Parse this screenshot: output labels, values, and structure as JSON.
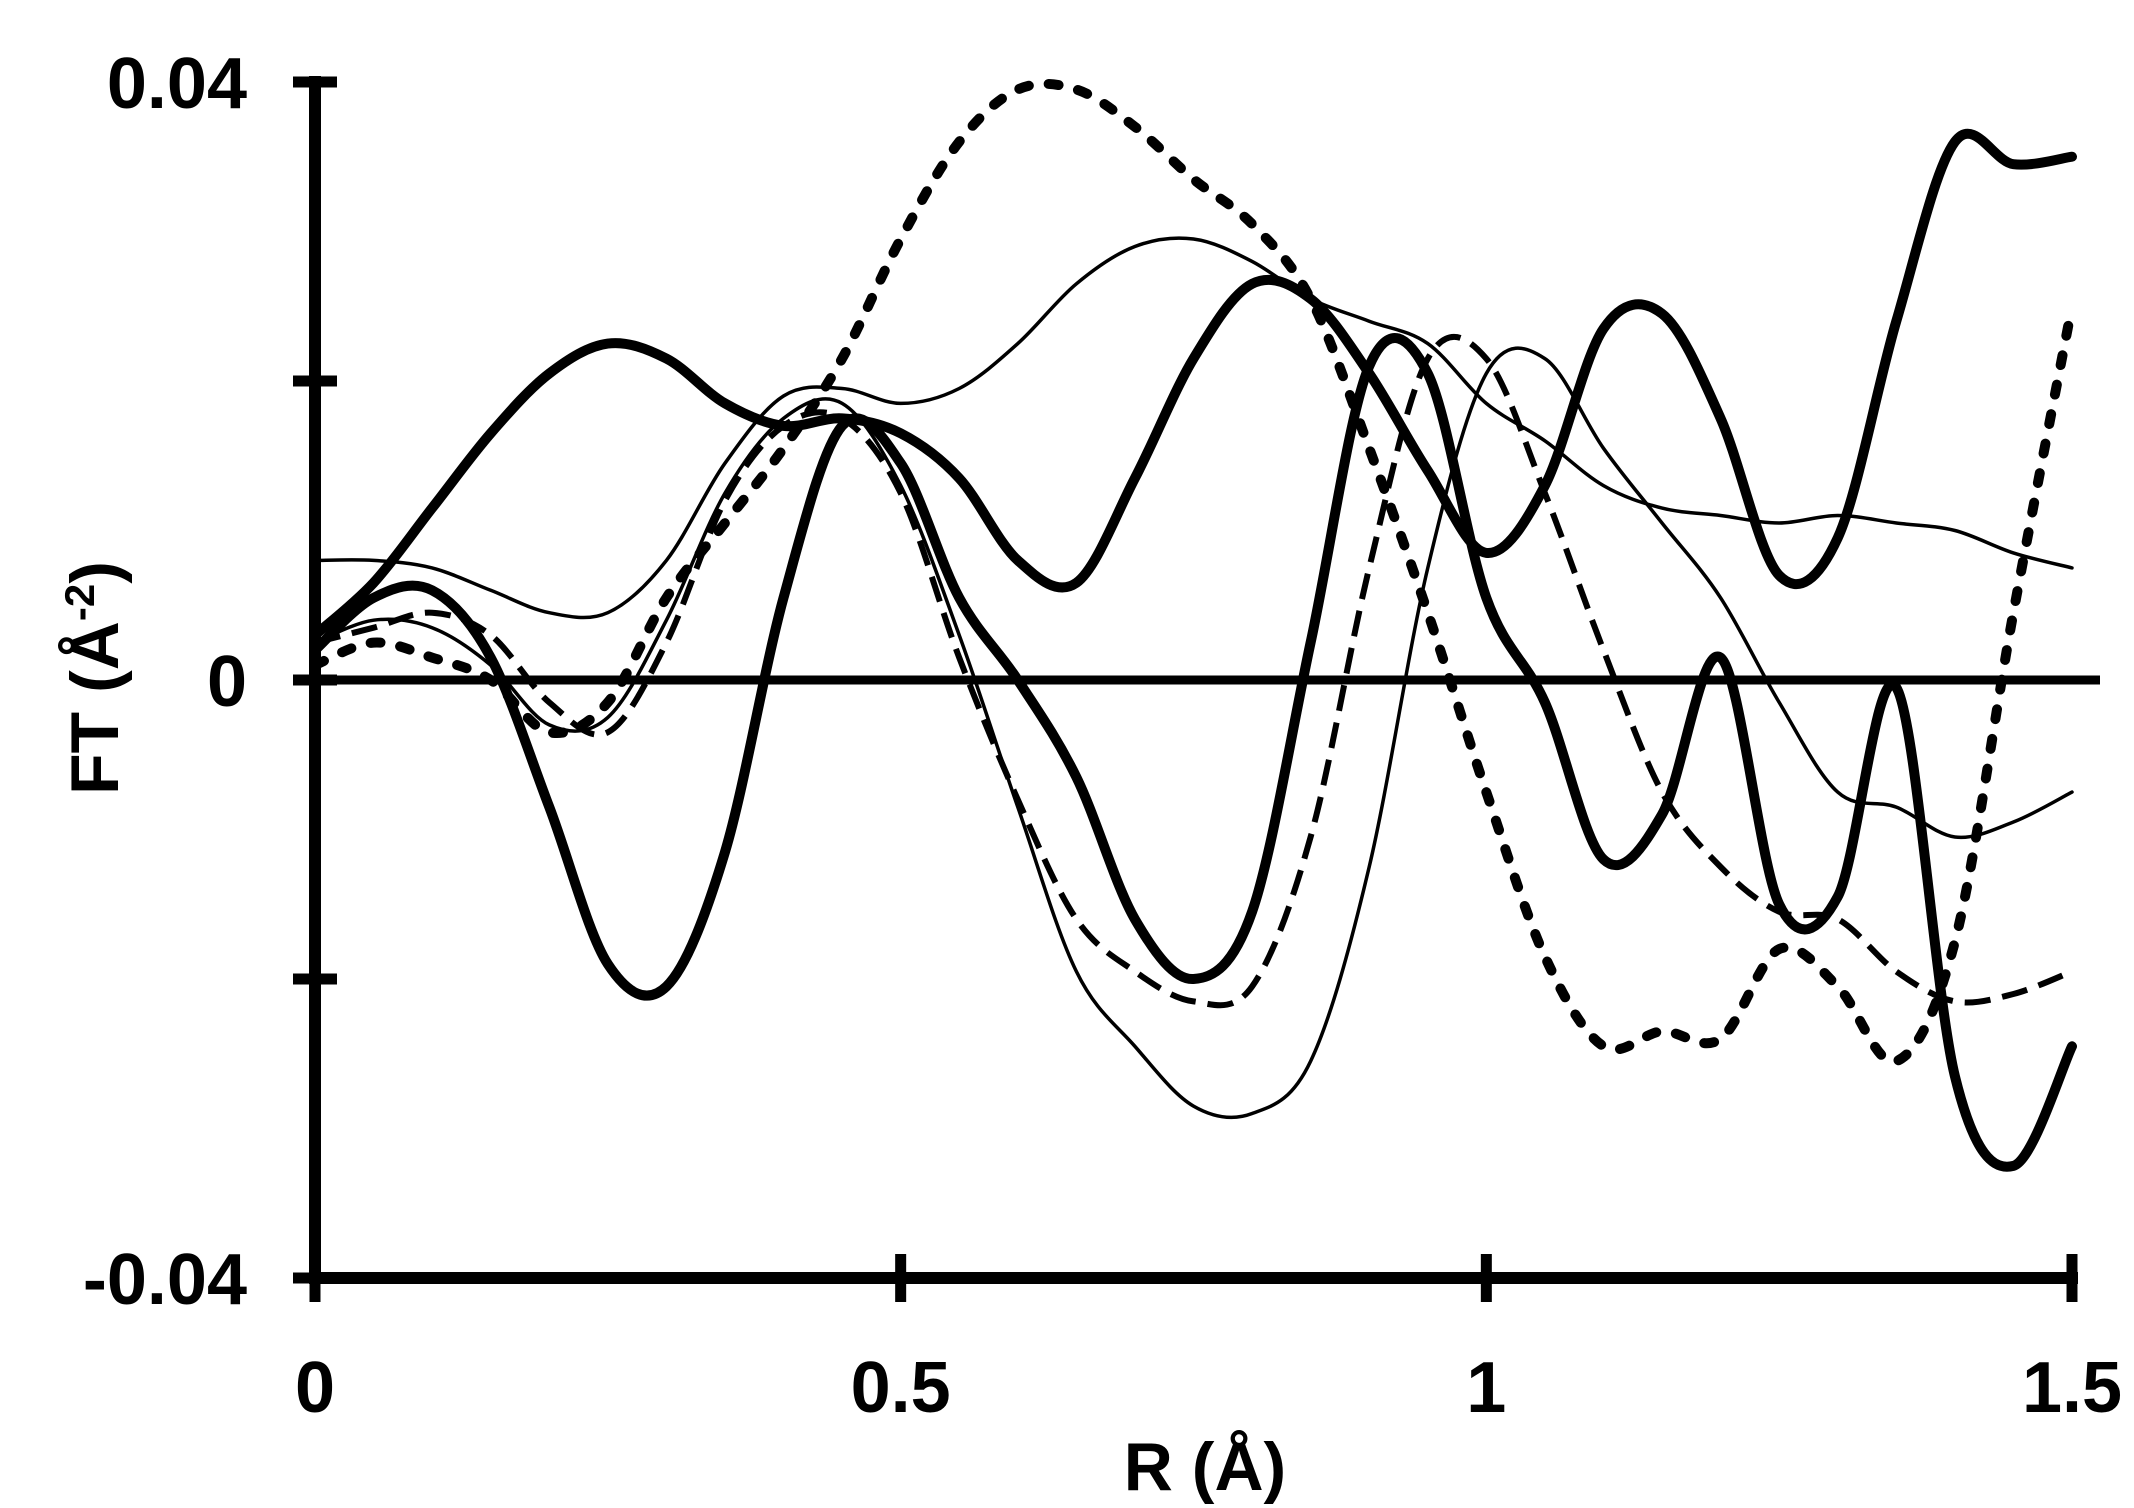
{
  "chart_data": {
    "type": "line",
    "title": "",
    "xlabel": "R (Å)",
    "ylabel_main": "FT (Å",
    "ylabel_sup": "-2",
    "ylabel_close": ")",
    "xlim": [
      0,
      1.5
    ],
    "ylim": [
      -0.04,
      0.04
    ],
    "x_ticks": [
      {
        "value": 0,
        "label": "0"
      },
      {
        "value": 0.5,
        "label": "0.5"
      },
      {
        "value": 1,
        "label": "1"
      },
      {
        "value": 1.5,
        "label": "1.5"
      }
    ],
    "y_ticks": [
      {
        "value": -0.04,
        "label": "-0.04"
      },
      {
        "value": -0.02,
        "label": ""
      },
      {
        "value": 0,
        "label": "0"
      },
      {
        "value": 0.02,
        "label": ""
      },
      {
        "value": 0.04,
        "label": "0.04"
      }
    ],
    "grid": false,
    "zero_line": true,
    "series": [
      {
        "style": "thick-solid",
        "x": [
          0,
          0.05,
          0.1,
          0.15,
          0.2,
          0.25,
          0.3,
          0.35,
          0.4,
          0.45,
          0.5,
          0.55,
          0.6,
          0.65,
          0.7,
          0.75,
          0.8,
          0.85,
          0.9,
          0.95,
          1.0,
          1.05,
          1.1,
          1.15,
          1.2,
          1.25,
          1.3,
          1.35,
          1.4,
          1.45,
          1.5
        ],
        "y": [
          0.003,
          0.0065,
          0.0115,
          0.0165,
          0.0205,
          0.0225,
          0.0215,
          0.0185,
          0.017,
          0.0175,
          0.0165,
          0.0135,
          0.008,
          0.0065,
          0.0135,
          0.0215,
          0.0265,
          0.0255,
          0.0205,
          0.014,
          0.0085,
          0.013,
          0.0235,
          0.0245,
          0.0175,
          0.007,
          0.0095,
          0.024,
          0.036,
          0.0345,
          0.035
        ]
      },
      {
        "style": "thick-solid",
        "x": [
          0,
          0.05,
          0.1,
          0.15,
          0.2,
          0.25,
          0.3,
          0.35,
          0.4,
          0.45,
          0.5,
          0.55,
          0.6,
          0.65,
          0.7,
          0.75,
          0.8,
          0.85,
          0.9,
          0.95,
          1.0,
          1.05,
          1.1,
          1.15,
          1.2,
          1.25,
          1.3,
          1.35,
          1.4,
          1.45,
          1.5
        ],
        "y": [
          0.002,
          0.0055,
          0.006,
          0.0015,
          -0.0085,
          -0.019,
          -0.0205,
          -0.0115,
          0.0055,
          0.017,
          0.0145,
          0.0055,
          0.0,
          -0.0065,
          -0.016,
          -0.02,
          -0.0155,
          0.0025,
          0.021,
          0.0205,
          0.0055,
          -0.0015,
          -0.012,
          -0.009,
          0.0015,
          -0.015,
          -0.0145,
          -0.0005,
          -0.0265,
          -0.0325,
          -0.0245
        ]
      },
      {
        "style": "thick-dotted",
        "x": [
          0,
          0.05,
          0.1,
          0.15,
          0.2,
          0.25,
          0.3,
          0.35,
          0.4,
          0.45,
          0.5,
          0.55,
          0.6,
          0.65,
          0.7,
          0.75,
          0.8,
          0.85,
          0.9,
          0.95,
          1.0,
          1.05,
          1.1,
          1.15,
          1.2,
          1.25,
          1.3,
          1.35,
          1.4,
          1.45,
          1.5
        ],
        "y": [
          0.001,
          0.0025,
          0.0015,
          0.0,
          -0.0035,
          -0.0015,
          0.0055,
          0.0105,
          0.0155,
          0.0215,
          0.0295,
          0.036,
          0.0395,
          0.0395,
          0.037,
          0.0335,
          0.0305,
          0.0255,
          0.0155,
          0.0045,
          -0.0075,
          -0.0185,
          -0.0245,
          -0.0235,
          -0.024,
          -0.018,
          -0.0205,
          -0.0255,
          -0.0175,
          0.0045,
          0.025
        ]
      },
      {
        "style": "thin-solid",
        "x": [
          0,
          0.05,
          0.1,
          0.15,
          0.2,
          0.25,
          0.3,
          0.35,
          0.4,
          0.45,
          0.5,
          0.55,
          0.6,
          0.65,
          0.7,
          0.75,
          0.8,
          0.85,
          0.9,
          0.95,
          1.0,
          1.05,
          1.1,
          1.15,
          1.2,
          1.25,
          1.3,
          1.35,
          1.4,
          1.45,
          1.5
        ],
        "y": [
          0.008,
          0.008,
          0.0075,
          0.006,
          0.0045,
          0.0045,
          0.008,
          0.0145,
          0.019,
          0.0195,
          0.0185,
          0.0195,
          0.0225,
          0.0265,
          0.029,
          0.0295,
          0.028,
          0.0255,
          0.024,
          0.0225,
          0.0185,
          0.016,
          0.013,
          0.0115,
          0.011,
          0.0105,
          0.011,
          0.0105,
          0.01,
          0.0085,
          0.0075
        ]
      },
      {
        "style": "thin-solid",
        "x": [
          0,
          0.05,
          0.1,
          0.15,
          0.2,
          0.25,
          0.3,
          0.35,
          0.4,
          0.45,
          0.5,
          0.55,
          0.6,
          0.65,
          0.7,
          0.75,
          0.8,
          0.85,
          0.9,
          0.95,
          1.0,
          1.05,
          1.1,
          1.15,
          1.2,
          1.25,
          1.3,
          1.35,
          1.4,
          1.45,
          1.5
        ],
        "y": [
          0.0025,
          0.004,
          0.0035,
          0.001,
          -0.003,
          -0.0025,
          0.004,
          0.0125,
          0.0175,
          0.0185,
          0.013,
          0.003,
          -0.0085,
          -0.0195,
          -0.0245,
          -0.0285,
          -0.029,
          -0.0255,
          -0.0125,
          0.0075,
          0.0205,
          0.0215,
          0.0155,
          0.0105,
          0.0055,
          -0.0015,
          -0.0075,
          -0.0085,
          -0.0105,
          -0.0095,
          -0.0075
        ]
      },
      {
        "style": "thin-dashed",
        "x": [
          0,
          0.05,
          0.1,
          0.15,
          0.2,
          0.25,
          0.3,
          0.35,
          0.4,
          0.45,
          0.5,
          0.55,
          0.6,
          0.65,
          0.7,
          0.75,
          0.8,
          0.85,
          0.9,
          0.95,
          1.0,
          1.05,
          1.1,
          1.15,
          1.2,
          1.25,
          1.3,
          1.35,
          1.4,
          1.45,
          1.5
        ],
        "y": [
          0.0025,
          0.0035,
          0.0045,
          0.003,
          -0.0015,
          -0.0035,
          0.0025,
          0.012,
          0.017,
          0.0175,
          0.0125,
          0.0015,
          -0.008,
          -0.016,
          -0.0195,
          -0.0215,
          -0.0205,
          -0.0105,
          0.0075,
          0.0215,
          0.0215,
          0.0125,
          0.002,
          -0.0075,
          -0.0125,
          -0.0155,
          -0.016,
          -0.0195,
          -0.0215,
          -0.021,
          -0.0195
        ]
      }
    ]
  }
}
